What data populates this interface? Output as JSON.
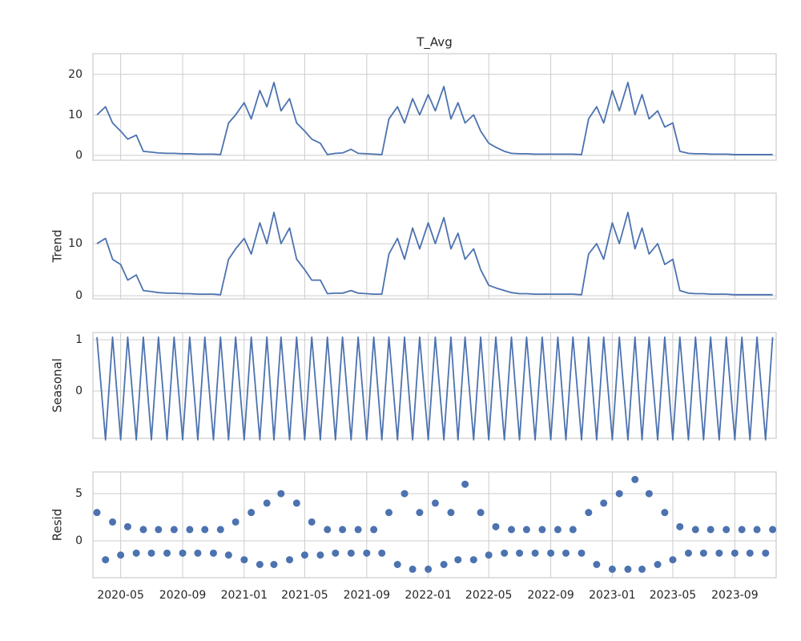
{
  "chart_data": [
    {
      "type": "line",
      "title": "T_Avg",
      "color": "#4c72b0",
      "x": [
        "2020-03-15",
        "2020-04-01",
        "2020-04-15",
        "2020-05-01",
        "2020-05-15",
        "2020-06-01",
        "2020-06-15",
        "2020-07-01",
        "2020-07-15",
        "2020-08-01",
        "2020-08-15",
        "2020-09-01",
        "2020-09-15",
        "2020-10-01",
        "2020-10-15",
        "2020-11-01",
        "2020-11-15",
        "2020-12-01",
        "2020-12-15",
        "2021-01-01",
        "2021-01-15",
        "2021-02-01",
        "2021-02-15",
        "2021-03-01",
        "2021-03-15",
        "2021-04-01",
        "2021-04-15",
        "2021-05-01",
        "2021-05-15",
        "2021-06-01",
        "2021-06-15",
        "2021-07-01",
        "2021-07-15",
        "2021-08-01",
        "2021-08-15",
        "2021-09-01",
        "2021-09-15",
        "2021-10-01",
        "2021-10-15",
        "2021-11-01",
        "2021-11-15",
        "2021-12-01",
        "2021-12-15",
        "2022-01-01",
        "2022-01-15",
        "2022-02-01",
        "2022-02-15",
        "2022-03-01",
        "2022-03-15",
        "2022-04-01",
        "2022-04-15",
        "2022-05-01",
        "2022-05-15",
        "2022-06-01",
        "2022-06-15",
        "2022-07-01",
        "2022-07-15",
        "2022-08-01",
        "2022-08-15",
        "2022-09-01",
        "2022-09-15",
        "2022-10-01",
        "2022-10-15",
        "2022-11-01",
        "2022-11-15",
        "2022-12-01",
        "2022-12-15",
        "2023-01-01",
        "2023-01-15",
        "2023-02-01",
        "2023-02-15",
        "2023-03-01",
        "2023-03-15",
        "2023-04-01",
        "2023-04-15",
        "2023-05-01",
        "2023-05-15",
        "2023-06-01",
        "2023-06-15",
        "2023-07-01",
        "2023-07-15",
        "2023-08-01",
        "2023-08-15",
        "2023-09-01",
        "2023-09-15",
        "2023-10-01",
        "2023-10-15",
        "2023-11-01",
        "2023-11-15"
      ],
      "xlim": [
        "2020-03-07",
        "2023-11-22"
      ],
      "xticks": [
        {
          "value": "2020-05-01",
          "label": "2020-05"
        },
        {
          "value": "2020-09-01",
          "label": "2020-09"
        },
        {
          "value": "2021-01-01",
          "label": "2021-01"
        },
        {
          "value": "2021-05-01",
          "label": "2021-05"
        },
        {
          "value": "2021-09-01",
          "label": "2021-09"
        },
        {
          "value": "2022-01-01",
          "label": "2022-01"
        },
        {
          "value": "2022-05-01",
          "label": "2022-05"
        },
        {
          "value": "2022-09-01",
          "label": "2022-09"
        },
        {
          "value": "2023-01-01",
          "label": "2023-01"
        },
        {
          "value": "2023-05-01",
          "label": "2023-05"
        },
        {
          "value": "2023-09-01",
          "label": "2023-09"
        }
      ],
      "values": [
        10,
        12,
        8,
        6,
        4,
        5,
        1,
        0.8,
        0.6,
        0.5,
        0.5,
        0.4,
        0.4,
        0.3,
        0.3,
        0.3,
        0.2,
        8,
        10,
        13,
        9,
        16,
        12,
        18,
        11,
        14,
        8,
        6,
        4,
        3,
        0.2,
        0.5,
        0.6,
        1.5,
        0.5,
        0.4,
        0.3,
        0.2,
        9,
        12,
        8,
        14,
        10,
        15,
        11,
        17,
        9,
        13,
        8,
        10,
        6,
        3,
        2,
        1,
        0.5,
        0.4,
        0.4,
        0.3,
        0.3,
        0.3,
        0.3,
        0.3,
        0.3,
        0.2,
        9,
        12,
        8,
        16,
        11,
        18,
        10,
        15,
        9,
        11,
        7,
        8,
        1,
        0.5,
        0.4,
        0.4,
        0.3,
        0.3,
        0.3,
        0.2,
        0.2,
        0.2,
        0.2,
        0.2,
        0.2
      ],
      "ylim": [
        -1.2,
        25.1
      ],
      "yticks": [
        0,
        10,
        20
      ],
      "grid": true
    },
    {
      "type": "line",
      "ylabel": "Trend",
      "color": "#4c72b0",
      "values": [
        10,
        11,
        7,
        6,
        3,
        4,
        1,
        0.8,
        0.6,
        0.5,
        0.5,
        0.4,
        0.4,
        0.3,
        0.3,
        0.3,
        0.2,
        7,
        9,
        11,
        8,
        14,
        10,
        16,
        10,
        13,
        7,
        5,
        3,
        3,
        0.4,
        0.5,
        0.5,
        1,
        0.5,
        0.4,
        0.3,
        0.3,
        8,
        11,
        7,
        13,
        9,
        14,
        10,
        15,
        9,
        12,
        7,
        9,
        5,
        2,
        1.5,
        1,
        0.6,
        0.4,
        0.4,
        0.3,
        0.3,
        0.3,
        0.3,
        0.3,
        0.3,
        0.2,
        8,
        10,
        7,
        14,
        10,
        16,
        9,
        13,
        8,
        10,
        6,
        7,
        1,
        0.5,
        0.4,
        0.4,
        0.3,
        0.3,
        0.3,
        0.2,
        0.2,
        0.2,
        0.2,
        0.2,
        0.2
      ],
      "ylim": [
        -0.6,
        19.7
      ],
      "yticks": [
        0,
        10
      ],
      "grid": true
    },
    {
      "type": "line",
      "ylabel": "Seasonal",
      "color": "#4c72b0",
      "values": [
        1.05,
        -0.95,
        1.05,
        -0.95,
        1.05,
        -0.95,
        1.05,
        -0.95,
        1.05,
        -0.95,
        1.05,
        -0.95,
        1.05,
        -0.95,
        1.05,
        -0.95,
        1.05,
        -0.95,
        1.05,
        -0.95,
        1.05,
        -0.95,
        1.05,
        -0.95,
        1.05,
        -0.95,
        1.05,
        -0.95,
        1.05,
        -0.95,
        1.05,
        -0.95,
        1.05,
        -0.95,
        1.05,
        -0.95,
        1.05,
        -0.95,
        1.05,
        -0.95,
        1.05,
        -0.95,
        1.05,
        -0.95,
        1.05,
        -0.95,
        1.05,
        -0.95,
        1.05,
        -0.95,
        1.05,
        -0.95,
        1.05,
        -0.95,
        1.05,
        -0.95,
        1.05,
        -0.95,
        1.05,
        -0.95,
        1.05,
        -0.95,
        1.05,
        -0.95,
        1.05,
        -0.95,
        1.05,
        -0.95,
        1.05,
        -0.95,
        1.05,
        -0.95,
        1.05,
        -0.95,
        1.05,
        -0.95,
        1.05,
        -0.95,
        1.05,
        -0.95,
        1.05,
        -0.95,
        1.05,
        -0.95,
        1.05,
        -0.95,
        1.05,
        -0.95,
        1.05
      ],
      "ylim": [
        -0.92,
        1.14
      ],
      "yticks": [
        0,
        1
      ],
      "grid": true
    },
    {
      "type": "scatter",
      "ylabel": "Resid",
      "color": "#4c72b0",
      "values": [
        3,
        -2,
        2,
        -1.5,
        1.5,
        -1.3,
        1.2,
        -1.3,
        1.2,
        -1.3,
        1.2,
        -1.3,
        1.2,
        -1.3,
        1.2,
        -1.3,
        1.2,
        -1.5,
        2,
        -2,
        3,
        -2.5,
        4,
        -2.5,
        5,
        -2,
        4,
        -1.5,
        2,
        -1.5,
        1.2,
        -1.3,
        1.2,
        -1.3,
        1.2,
        -1.3,
        1.2,
        -1.3,
        3,
        -2.5,
        5,
        -3,
        3,
        -3,
        4,
        -2.5,
        3,
        -2,
        6,
        -2,
        3,
        -1.5,
        1.5,
        -1.3,
        1.2,
        -1.3,
        1.2,
        -1.3,
        1.2,
        -1.3,
        1.2,
        -1.3,
        1.2,
        -1.3,
        3,
        -2.5,
        4,
        -3,
        5,
        -3,
        6.5,
        -3,
        5,
        -2.5,
        3,
        -2,
        1.5,
        -1.3,
        1.2,
        -1.3,
        1.2,
        -1.3,
        1.2,
        -1.3,
        1.2,
        -1.3,
        1.2,
        -1.3,
        1.2
      ],
      "ylim": [
        -3.9,
        7.3
      ],
      "yticks": [
        0,
        5
      ],
      "grid": true
    }
  ]
}
